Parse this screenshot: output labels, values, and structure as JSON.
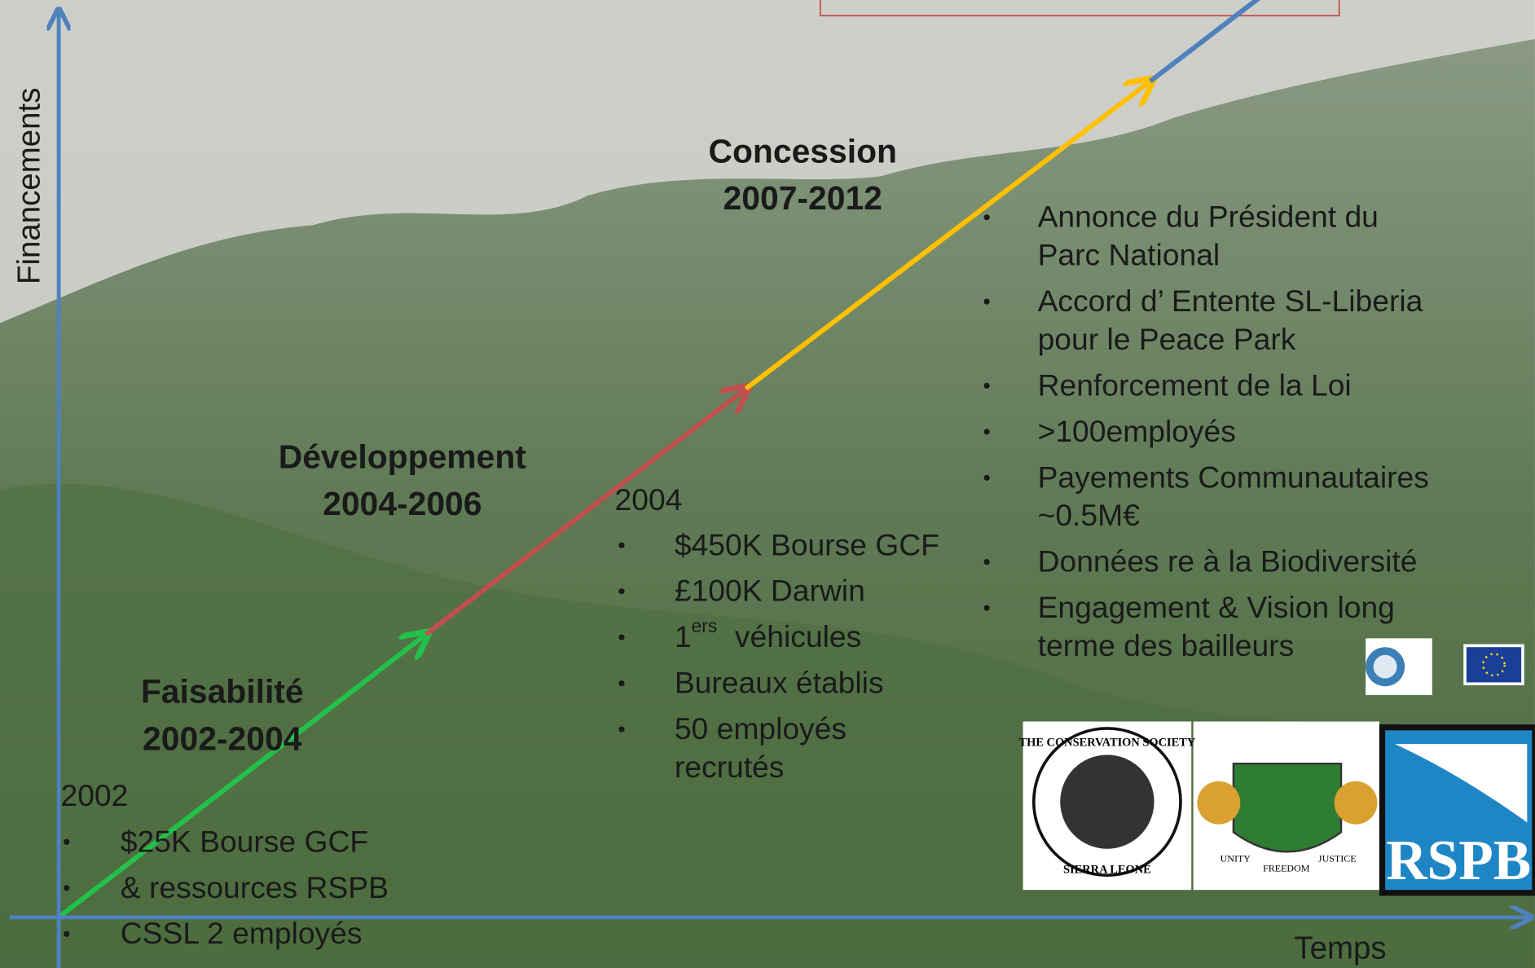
{
  "axes": {
    "y_label": "Financements",
    "x_label": "Temps"
  },
  "phases": [
    {
      "title": "Faisabilité",
      "years": "2002-2004",
      "start": "2002",
      "bullets": [
        "$25K Bourse GCF",
        "& ressources RSPB",
        "CSSL 2 employés"
      ]
    },
    {
      "title": "Développement",
      "years": "2004-2006",
      "start": "2004",
      "bullets": [
        "$450K Bourse GCF",
        "£100K Darwin",
        {
          "number": "1",
          "superscript": "ers",
          "text": "véhicules"
        },
        "Bureaux établis",
        "50 employés\nrecrutés"
      ]
    },
    {
      "title": "Concession",
      "years": "2007-2012",
      "bullets": [
        "Annonce du Président du\nParc National",
        "Accord d’ Entente SL-Liberia\npour le Peace Park",
        "Renforcement de la Loi",
        ">100employés",
        "Payements Communautaires\n~0.5M€",
        "Données re à la Biodiversité",
        "Engagement & Vision long\nterme des bailleurs"
      ]
    }
  ],
  "logos": {
    "conservation_society": [
      "THE CONSERVATION SOCIETY",
      "SIERRA LEONE"
    ],
    "coat_of_arms": [
      "UNITY",
      "FREEDOM",
      "JUSTICE"
    ],
    "rspb": "RSPB"
  }
}
